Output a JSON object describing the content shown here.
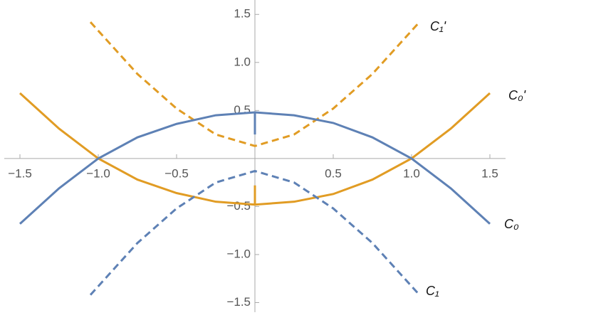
{
  "chart_data": {
    "type": "line",
    "xlim": [
      -1.6,
      1.6
    ],
    "ylim": [
      -1.6,
      1.65
    ],
    "xticks": [
      {
        "value": -1.5,
        "label": "−1.5"
      },
      {
        "value": -1,
        "label": "−1.0"
      },
      {
        "value": -0.5,
        "label": "−0.5"
      },
      0.5,
      {
        "value": 1,
        "label": "1.0"
      },
      1.5
    ],
    "yticks": [
      {
        "value": -1.5,
        "label": "−1.5"
      },
      {
        "value": -1,
        "label": "−1.0"
      },
      {
        "value": -0.5,
        "label": "−0.5"
      },
      0.5,
      {
        "value": 1,
        "label": "1.0"
      },
      1.5
    ],
    "series": [
      {
        "name": "C₁'",
        "color": "#e19c24",
        "dashed": true,
        "x": [
          -1.05,
          -0.75,
          -0.5,
          -0.25,
          0,
          0.25,
          0.5,
          0.75,
          1.05
        ],
        "values": [
          1.42,
          0.88,
          0.52,
          0.25,
          0.13,
          0.25,
          0.52,
          0.88,
          1.42
        ]
      },
      {
        "name": "C₀'",
        "color": "#e19c24",
        "dashed": false,
        "x": [
          -1.5,
          -1.25,
          -1,
          -0.75,
          -0.5,
          -0.25,
          0,
          0.25,
          0.5,
          0.75,
          1,
          1.25,
          1.5
        ],
        "values": [
          0.68,
          0.31,
          0,
          -0.22,
          -0.36,
          -0.45,
          -0.48,
          -0.45,
          -0.37,
          -0.22,
          0,
          0.31,
          0.68
        ]
      },
      {
        "name": "C₀",
        "color": "#5e81b5",
        "dashed": false,
        "x": [
          -1.5,
          -1.25,
          -1,
          -0.75,
          -0.5,
          -0.25,
          0,
          0.25,
          0.5,
          0.75,
          1,
          1.25,
          1.5
        ],
        "values": [
          -0.68,
          -0.31,
          0,
          0.22,
          0.36,
          0.45,
          0.48,
          0.45,
          0.37,
          0.22,
          0,
          -0.31,
          -0.68
        ]
      },
      {
        "name": "C₁",
        "color": "#5e81b5",
        "dashed": true,
        "x": [
          -1.05,
          -0.75,
          -0.5,
          -0.25,
          0,
          0.25,
          0.5,
          0.75,
          1.05
        ],
        "values": [
          -1.42,
          -0.88,
          -0.52,
          -0.25,
          -0.13,
          -0.25,
          -0.52,
          -0.88,
          -1.42
        ]
      },
      {
        "color": "#5e81b5",
        "dashed": false,
        "x": [
          0,
          0
        ],
        "values": [
          0.48,
          0.25
        ]
      },
      {
        "color": "#e19c24",
        "dashed": false,
        "x": [
          0,
          0
        ],
        "values": [
          -0.48,
          -0.28
        ]
      }
    ]
  }
}
